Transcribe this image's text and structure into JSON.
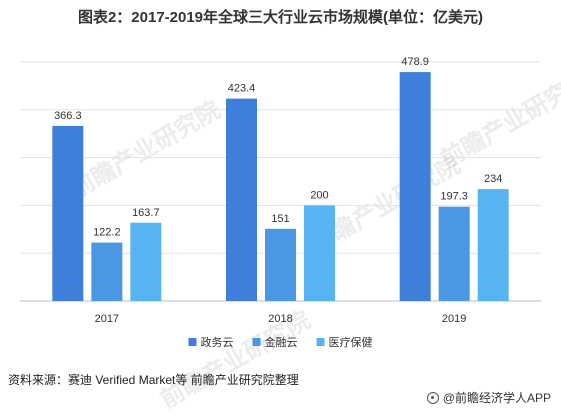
{
  "chart_data": {
    "type": "bar",
    "title": "图表2：2017-2019年全球三大行业云市场规模(单位：亿美元)",
    "categories": [
      "2017",
      "2018",
      "2019"
    ],
    "series": [
      {
        "name": "政务云",
        "values": [
          366.3,
          423.4,
          478.9
        ],
        "color": "#3f7fdc"
      },
      {
        "name": "金融云",
        "values": [
          122.2,
          151,
          197.3
        ],
        "color": "#4a98e4"
      },
      {
        "name": "医疗保健",
        "values": [
          163.7,
          200,
          234
        ],
        "color": "#56b4f0"
      }
    ],
    "data_labels": [
      [
        "366.3",
        "122.2",
        "163.7"
      ],
      [
        "423.4",
        "151",
        "200"
      ],
      [
        "478.9",
        "197.3",
        "234"
      ]
    ],
    "ylim": [
      0,
      500
    ],
    "grid": true,
    "legend_position": "bottom"
  },
  "footer": {
    "source": "资料来源：赛迪 Verified Market等 前瞻产业研究院整理",
    "brand": "@前瞻经济学人APP"
  },
  "watermark": "前瞻产业研究院"
}
